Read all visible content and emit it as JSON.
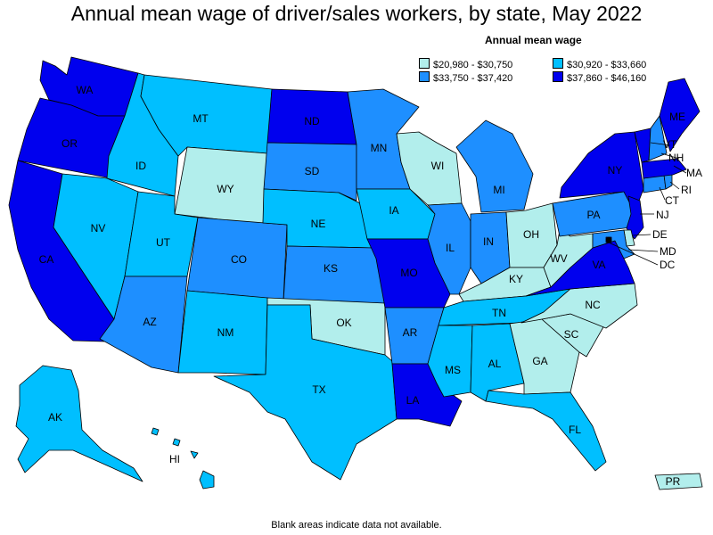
{
  "title": "Annual mean wage of driver/sales workers, by state, May 2022",
  "legend": {
    "title": "Annual mean wage",
    "items": [
      {
        "label": "$20,980 - $30,750",
        "color": "#b2eeec"
      },
      {
        "label": "$30,920 - $33,660",
        "color": "#00bfff"
      },
      {
        "label": "$33,750 - $37,420",
        "color": "#1e8fff"
      },
      {
        "label": "$37,860 - $46,160",
        "color": "#0000ee"
      }
    ]
  },
  "footer_note": "Blank areas indicate data not available.",
  "states": {
    "WA": {
      "label": "WA",
      "tier": 3
    },
    "OR": {
      "label": "OR",
      "tier": 3
    },
    "CA": {
      "label": "CA",
      "tier": 3
    },
    "ID": {
      "label": "ID",
      "tier": 1
    },
    "NV": {
      "label": "NV",
      "tier": 1
    },
    "MT": {
      "label": "MT",
      "tier": 1
    },
    "WY": {
      "label": "WY",
      "tier": 0
    },
    "UT": {
      "label": "UT",
      "tier": 1
    },
    "AZ": {
      "label": "AZ",
      "tier": 2
    },
    "CO": {
      "label": "CO",
      "tier": 2
    },
    "NM": {
      "label": "NM",
      "tier": 1
    },
    "ND": {
      "label": "ND",
      "tier": 3
    },
    "SD": {
      "label": "SD",
      "tier": 2
    },
    "NE": {
      "label": "NE",
      "tier": 1
    },
    "KS": {
      "label": "KS",
      "tier": 2
    },
    "OK": {
      "label": "OK",
      "tier": 0
    },
    "TX": {
      "label": "TX",
      "tier": 1
    },
    "MN": {
      "label": "MN",
      "tier": 2
    },
    "IA": {
      "label": "IA",
      "tier": 1
    },
    "MO": {
      "label": "MO",
      "tier": 3
    },
    "AR": {
      "label": "AR",
      "tier": 2
    },
    "LA": {
      "label": "LA",
      "tier": 3
    },
    "WI": {
      "label": "WI",
      "tier": 0
    },
    "IL": {
      "label": "IL",
      "tier": 2
    },
    "MI": {
      "label": "MI",
      "tier": 2
    },
    "IN": {
      "label": "IN",
      "tier": 2
    },
    "OH": {
      "label": "OH",
      "tier": 0
    },
    "KY": {
      "label": "KY",
      "tier": 0
    },
    "TN": {
      "label": "TN",
      "tier": 1
    },
    "MS": {
      "label": "MS",
      "tier": 1
    },
    "AL": {
      "label": "AL",
      "tier": 1
    },
    "GA": {
      "label": "GA",
      "tier": 0
    },
    "FL": {
      "label": "FL",
      "tier": 1
    },
    "SC": {
      "label": "SC",
      "tier": 0
    },
    "NC": {
      "label": "NC",
      "tier": 0
    },
    "VA": {
      "label": "VA",
      "tier": 3
    },
    "WV": {
      "label": "WV",
      "tier": 0
    },
    "PA": {
      "label": "PA",
      "tier": 2
    },
    "NY": {
      "label": "NY",
      "tier": 3
    },
    "VT": {
      "label": "VT",
      "tier": 3
    },
    "NH": {
      "label": "NH",
      "tier": 2
    },
    "ME": {
      "label": "ME",
      "tier": 3
    },
    "MA": {
      "label": "MA",
      "tier": 3
    },
    "RI": {
      "label": "RI",
      "tier": 2
    },
    "CT": {
      "label": "CT",
      "tier": 2
    },
    "NJ": {
      "label": "NJ",
      "tier": 3
    },
    "DE": {
      "label": "DE",
      "tier": 0
    },
    "MD": {
      "label": "MD",
      "tier": 2
    },
    "DC": {
      "label": "DC",
      "tier": 3
    },
    "AK": {
      "label": "AK",
      "tier": 1
    },
    "HI": {
      "label": "HI",
      "tier": 1
    },
    "PR": {
      "label": "PR",
      "tier": 0
    }
  }
}
